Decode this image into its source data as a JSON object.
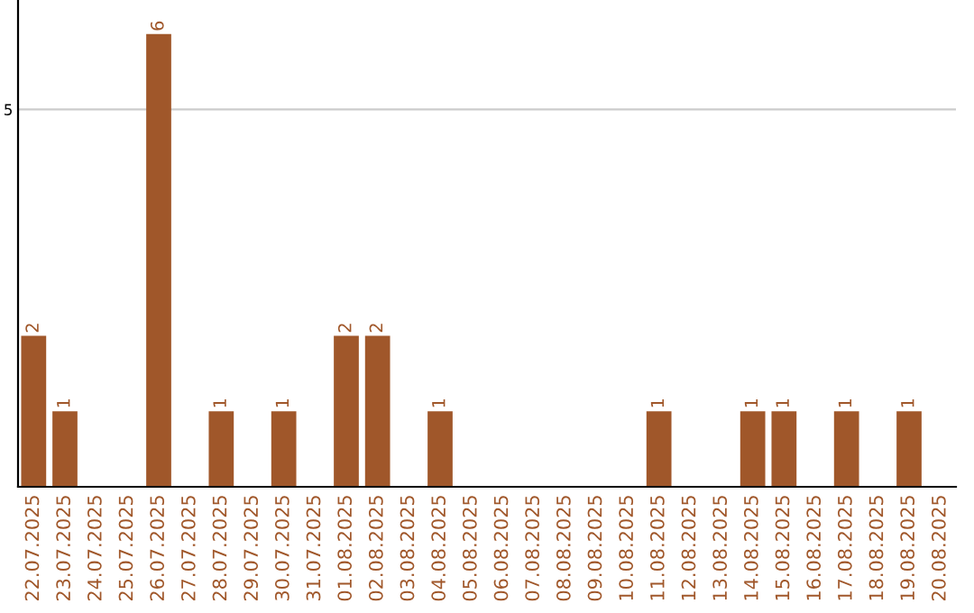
{
  "chart_data": {
    "type": "bar",
    "categories": [
      "22.07.2025",
      "23.07.2025",
      "24.07.2025",
      "25.07.2025",
      "26.07.2025",
      "27.07.2025",
      "28.07.2025",
      "29.07.2025",
      "30.07.2025",
      "31.07.2025",
      "01.08.2025",
      "02.08.2025",
      "03.08.2025",
      "04.08.2025",
      "05.08.2025",
      "06.08.2025",
      "07.08.2025",
      "08.08.2025",
      "09.08.2025",
      "10.08.2025",
      "11.08.2025",
      "12.08.2025",
      "13.08.2025",
      "14.08.2025",
      "15.08.2025",
      "16.08.2025",
      "17.08.2025",
      "18.08.2025",
      "19.08.2025",
      "20.08.2025"
    ],
    "values": [
      2,
      1,
      0,
      0,
      6,
      0,
      1,
      0,
      1,
      0,
      2,
      2,
      0,
      1,
      0,
      0,
      0,
      0,
      0,
      0,
      1,
      0,
      0,
      1,
      1,
      0,
      1,
      0,
      1,
      0
    ],
    "value_labels": [
      "2",
      "1",
      null,
      null,
      "6",
      null,
      "1",
      null,
      "1",
      null,
      "2",
      "2",
      null,
      "1",
      null,
      null,
      null,
      null,
      null,
      null,
      "1",
      null,
      null,
      "1",
      "1",
      null,
      "1",
      null,
      "1",
      null
    ],
    "color": "#a0572a",
    "ylim": [
      0,
      6.45
    ],
    "yticks": [
      5
    ],
    "grid": "y",
    "legend": false
  }
}
